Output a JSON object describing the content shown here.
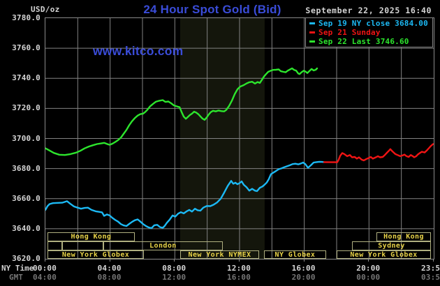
{
  "header": {
    "title": "24 Hour Spot Gold (Bid)",
    "title_color": "#3a4cd8",
    "unit_label": "USD/oz",
    "timestamp": "September 22, 2025 16:40",
    "watermark": "www.kitco.com"
  },
  "legend": {
    "items": [
      {
        "label": "Sep 19 NY close 3684.00",
        "color": "#1cb9f4"
      },
      {
        "label": "Sep 21 Sunday",
        "color": "#f01414"
      },
      {
        "label": "Sep 22 Last 3746.60",
        "color": "#2de52d"
      }
    ]
  },
  "axes": {
    "y_tick_labels": [
      "3780.0",
      "3760.0",
      "3740.0",
      "3720.0",
      "3700.0",
      "3680.0",
      "3660.0",
      "3640.0",
      "3620.0"
    ],
    "x_row1_label": "NY Time",
    "x_row2_label": "GMT",
    "x_row1_ticks": [
      "00:00",
      "04:00",
      "08:00",
      "12:00",
      "16:00",
      "20:00",
      "23:59"
    ],
    "x_row2_ticks": [
      "04:00",
      "08:00",
      "12:00",
      "16:00",
      "20:00",
      "00:00",
      "03:59"
    ],
    "x_tick_hours": [
      0,
      4,
      8,
      12,
      16,
      20,
      24
    ]
  },
  "sessions": {
    "border_color": "#b0b080",
    "text_color": "#e8d348",
    "rows": [
      [
        {
          "label": "Hong Kong",
          "start": 0.13,
          "end": 5.52
        },
        {
          "label": "Hong Kong",
          "start": 20.46,
          "end": 23.83
        }
      ],
      [
        {
          "label": "",
          "start": 0.13,
          "end": 1.04
        },
        {
          "label": "",
          "start": 1.04,
          "end": 3.58
        },
        {
          "label": "London",
          "start": 3.58,
          "end": 10.96
        },
        {
          "label": "Sydney",
          "start": 18.95,
          "end": 23.83
        }
      ],
      [
        {
          "label": "New York Globex",
          "start": 0.13,
          "end": 6.09
        },
        {
          "label": "New York NYMEX",
          "start": 8.33,
          "end": 13.21
        },
        {
          "label": "NY Globex",
          "start": 13.51,
          "end": 17.35
        },
        {
          "label": "New York Globex",
          "start": 18.0,
          "end": 23.83
        }
      ]
    ]
  },
  "chart_data": {
    "type": "line",
    "title": "24 Hour Spot Gold (Bid)",
    "xlabel": "NY Time (hours 00:00-23:59)",
    "ylabel": "USD/oz",
    "x_range_hours": [
      0,
      24
    ],
    "ylim": [
      3620,
      3780
    ],
    "grid": true,
    "grid_color": "#828282",
    "background": "#000000",
    "session_band": {
      "start": 8.33,
      "end": 13.55,
      "color": "#14160c"
    },
    "legend_position": "top-right",
    "series": [
      {
        "name": "Sep 22 (Last 3746.60)",
        "color": "#2de52d",
        "points": [
          [
            0,
            3693.5
          ],
          [
            0.26,
            3692.0
          ],
          [
            0.52,
            3690.4
          ],
          [
            0.86,
            3689.2
          ],
          [
            1.21,
            3689.0
          ],
          [
            1.55,
            3689.6
          ],
          [
            1.9,
            3690.6
          ],
          [
            2.16,
            3691.8
          ],
          [
            2.42,
            3693.4
          ],
          [
            2.68,
            3694.6
          ],
          [
            2.94,
            3695.5
          ],
          [
            3.19,
            3696.3
          ],
          [
            3.45,
            3696.7
          ],
          [
            3.63,
            3697.1
          ],
          [
            3.8,
            3696.4
          ],
          [
            3.97,
            3695.8
          ],
          [
            4.14,
            3696.5
          ],
          [
            4.32,
            3697.7
          ],
          [
            4.49,
            3698.9
          ],
          [
            4.66,
            3700.5
          ],
          [
            4.83,
            3703.0
          ],
          [
            5.01,
            3705.7
          ],
          [
            5.18,
            3708.8
          ],
          [
            5.35,
            3711.4
          ],
          [
            5.52,
            3713.5
          ],
          [
            5.7,
            3715.2
          ],
          [
            5.87,
            3716.2
          ],
          [
            6.04,
            3716.5
          ],
          [
            6.17,
            3717.6
          ],
          [
            6.3,
            3719.0
          ],
          [
            6.47,
            3721.4
          ],
          [
            6.65,
            3723.0
          ],
          [
            6.82,
            3724.4
          ],
          [
            7.04,
            3725.1
          ],
          [
            7.25,
            3725.5
          ],
          [
            7.42,
            3724.3
          ],
          [
            7.6,
            3724.6
          ],
          [
            7.77,
            3723.4
          ],
          [
            7.94,
            3722.0
          ],
          [
            8.11,
            3721.4
          ],
          [
            8.29,
            3720.8
          ],
          [
            8.42,
            3717.5
          ],
          [
            8.55,
            3714.5
          ],
          [
            8.68,
            3713.1
          ],
          [
            8.8,
            3714.3
          ],
          [
            8.93,
            3715.6
          ],
          [
            9.06,
            3716.5
          ],
          [
            9.19,
            3717.8
          ],
          [
            9.32,
            3717.2
          ],
          [
            9.45,
            3716.2
          ],
          [
            9.58,
            3714.7
          ],
          [
            9.71,
            3713.2
          ],
          [
            9.84,
            3712.4
          ],
          [
            9.97,
            3714.0
          ],
          [
            10.1,
            3716.0
          ],
          [
            10.23,
            3717.6
          ],
          [
            10.36,
            3718.4
          ],
          [
            10.53,
            3718.0
          ],
          [
            10.7,
            3718.6
          ],
          [
            10.88,
            3718.2
          ],
          [
            11.05,
            3718.0
          ],
          [
            11.18,
            3719.0
          ],
          [
            11.35,
            3721.5
          ],
          [
            11.52,
            3725.0
          ],
          [
            11.7,
            3729.5
          ],
          [
            11.87,
            3732.7
          ],
          [
            12.04,
            3734.5
          ],
          [
            12.26,
            3735.5
          ],
          [
            12.43,
            3736.6
          ],
          [
            12.6,
            3737.4
          ],
          [
            12.78,
            3737.7
          ],
          [
            12.95,
            3736.5
          ],
          [
            13.12,
            3737.5
          ],
          [
            13.25,
            3736.9
          ],
          [
            13.38,
            3739.0
          ],
          [
            13.51,
            3741.2
          ],
          [
            13.64,
            3742.8
          ],
          [
            13.77,
            3744.3
          ],
          [
            13.94,
            3745.1
          ],
          [
            14.07,
            3745.6
          ],
          [
            14.24,
            3745.7
          ],
          [
            14.42,
            3745.9
          ],
          [
            14.55,
            3744.7
          ],
          [
            14.72,
            3744.3
          ],
          [
            14.85,
            3744.0
          ],
          [
            14.98,
            3745.1
          ],
          [
            15.11,
            3745.8
          ],
          [
            15.24,
            3746.6
          ],
          [
            15.37,
            3745.6
          ],
          [
            15.5,
            3745.1
          ],
          [
            15.63,
            3743.2
          ],
          [
            15.71,
            3742.8
          ],
          [
            15.84,
            3744.1
          ],
          [
            15.97,
            3745.1
          ],
          [
            16.1,
            3744.3
          ],
          [
            16.19,
            3743.5
          ],
          [
            16.32,
            3744.9
          ],
          [
            16.45,
            3746.2
          ],
          [
            16.58,
            3745.2
          ],
          [
            16.71,
            3745.7
          ],
          [
            16.79,
            3746.6
          ]
        ]
      },
      {
        "name": "Sep 19 NY close 3684.00",
        "color": "#1cb9f4",
        "points": [
          [
            0,
            3652.5
          ],
          [
            0.13,
            3655.0
          ],
          [
            0.26,
            3656.4
          ],
          [
            0.47,
            3657.0
          ],
          [
            0.78,
            3657.2
          ],
          [
            1.04,
            3657.3
          ],
          [
            1.34,
            3658.3
          ],
          [
            1.55,
            3656.5
          ],
          [
            1.77,
            3654.8
          ],
          [
            1.99,
            3654.0
          ],
          [
            2.2,
            3653.3
          ],
          [
            2.42,
            3653.8
          ],
          [
            2.63,
            3654.0
          ],
          [
            2.85,
            3652.5
          ],
          [
            3.11,
            3651.6
          ],
          [
            3.32,
            3651.2
          ],
          [
            3.5,
            3650.9
          ],
          [
            3.63,
            3648.5
          ],
          [
            3.8,
            3649.5
          ],
          [
            3.97,
            3648.8
          ],
          [
            4.14,
            3647.2
          ],
          [
            4.32,
            3645.8
          ],
          [
            4.49,
            3644.7
          ],
          [
            4.66,
            3643.1
          ],
          [
            4.83,
            3642.2
          ],
          [
            5.01,
            3641.8
          ],
          [
            5.18,
            3643.2
          ],
          [
            5.35,
            3644.5
          ],
          [
            5.52,
            3645.6
          ],
          [
            5.7,
            3646.2
          ],
          [
            5.87,
            3644.7
          ],
          [
            6.04,
            3643.1
          ],
          [
            6.21,
            3641.8
          ],
          [
            6.39,
            3640.8
          ],
          [
            6.56,
            3640.4
          ],
          [
            6.73,
            3642.3
          ],
          [
            6.91,
            3642.6
          ],
          [
            7.08,
            3641.1
          ],
          [
            7.25,
            3640.6
          ],
          [
            7.38,
            3642.0
          ],
          [
            7.51,
            3644.0
          ],
          [
            7.68,
            3646.0
          ],
          [
            7.86,
            3648.8
          ],
          [
            8.03,
            3648.0
          ],
          [
            8.2,
            3650.0
          ],
          [
            8.37,
            3651.0
          ],
          [
            8.55,
            3650.2
          ],
          [
            8.72,
            3651.5
          ],
          [
            8.89,
            3652.5
          ],
          [
            9.06,
            3651.4
          ],
          [
            9.24,
            3653.3
          ],
          [
            9.41,
            3652.3
          ],
          [
            9.58,
            3652.0
          ],
          [
            9.76,
            3654.0
          ],
          [
            9.97,
            3655.1
          ],
          [
            10.19,
            3655.0
          ],
          [
            10.4,
            3656.0
          ],
          [
            10.62,
            3657.5
          ],
          [
            10.84,
            3660.0
          ],
          [
            11.05,
            3664.0
          ],
          [
            11.27,
            3668.5
          ],
          [
            11.48,
            3671.8
          ],
          [
            11.61,
            3669.9
          ],
          [
            11.74,
            3670.6
          ],
          [
            11.87,
            3669.6
          ],
          [
            12.0,
            3670.3
          ],
          [
            12.13,
            3671.5
          ],
          [
            12.26,
            3669.2
          ],
          [
            12.43,
            3667.6
          ],
          [
            12.6,
            3665.3
          ],
          [
            12.78,
            3666.5
          ],
          [
            12.95,
            3665.3
          ],
          [
            13.08,
            3665.0
          ],
          [
            13.25,
            3667.2
          ],
          [
            13.42,
            3668.1
          ],
          [
            13.55,
            3669.3
          ],
          [
            13.68,
            3670.7
          ],
          [
            13.81,
            3673.0
          ],
          [
            13.94,
            3676.2
          ],
          [
            14.07,
            3677.2
          ],
          [
            14.24,
            3678.3
          ],
          [
            14.42,
            3679.6
          ],
          [
            14.59,
            3680.1
          ],
          [
            14.76,
            3680.9
          ],
          [
            14.94,
            3681.6
          ],
          [
            15.11,
            3682.2
          ],
          [
            15.28,
            3683.0
          ],
          [
            15.45,
            3683.2
          ],
          [
            15.63,
            3682.8
          ],
          [
            15.8,
            3683.4
          ],
          [
            15.93,
            3684.0
          ],
          [
            16.06,
            3683.0
          ],
          [
            16.23,
            3680.5
          ],
          [
            16.4,
            3682.1
          ],
          [
            16.58,
            3684.0
          ],
          [
            16.75,
            3684.3
          ],
          [
            16.92,
            3684.5
          ],
          [
            17.09,
            3684.4
          ],
          [
            17.22,
            3684.3
          ]
        ]
      },
      {
        "name": "Sep 21 Sunday",
        "color": "#f01414",
        "points": [
          [
            17.22,
            3684.3
          ],
          [
            18.04,
            3684.2
          ],
          [
            18.13,
            3686.0
          ],
          [
            18.22,
            3688.5
          ],
          [
            18.35,
            3690.3
          ],
          [
            18.48,
            3689.6
          ],
          [
            18.65,
            3688.2
          ],
          [
            18.82,
            3689.0
          ],
          [
            18.95,
            3687.5
          ],
          [
            19.12,
            3687.7
          ],
          [
            19.25,
            3686.6
          ],
          [
            19.38,
            3687.5
          ],
          [
            19.55,
            3685.9
          ],
          [
            19.68,
            3685.4
          ],
          [
            19.81,
            3686.2
          ],
          [
            19.98,
            3687.0
          ],
          [
            20.11,
            3687.7
          ],
          [
            20.24,
            3686.6
          ],
          [
            20.42,
            3687.5
          ],
          [
            20.55,
            3688.2
          ],
          [
            20.68,
            3687.5
          ],
          [
            20.85,
            3687.7
          ],
          [
            20.98,
            3689.0
          ],
          [
            21.11,
            3690.5
          ],
          [
            21.24,
            3692.0
          ],
          [
            21.32,
            3692.9
          ],
          [
            21.45,
            3691.4
          ],
          [
            21.63,
            3689.6
          ],
          [
            21.76,
            3689.0
          ],
          [
            21.93,
            3688.2
          ],
          [
            22.06,
            3688.7
          ],
          [
            22.19,
            3689.3
          ],
          [
            22.32,
            3688.2
          ],
          [
            22.45,
            3687.7
          ],
          [
            22.58,
            3689.0
          ],
          [
            22.71,
            3688.2
          ],
          [
            22.79,
            3687.5
          ],
          [
            22.92,
            3688.2
          ],
          [
            23.01,
            3689.3
          ],
          [
            23.14,
            3690.3
          ],
          [
            23.27,
            3691.2
          ],
          [
            23.44,
            3690.7
          ],
          [
            23.57,
            3692.0
          ],
          [
            23.7,
            3693.5
          ],
          [
            23.83,
            3695.1
          ],
          [
            23.96,
            3696.3
          ]
        ]
      }
    ]
  }
}
